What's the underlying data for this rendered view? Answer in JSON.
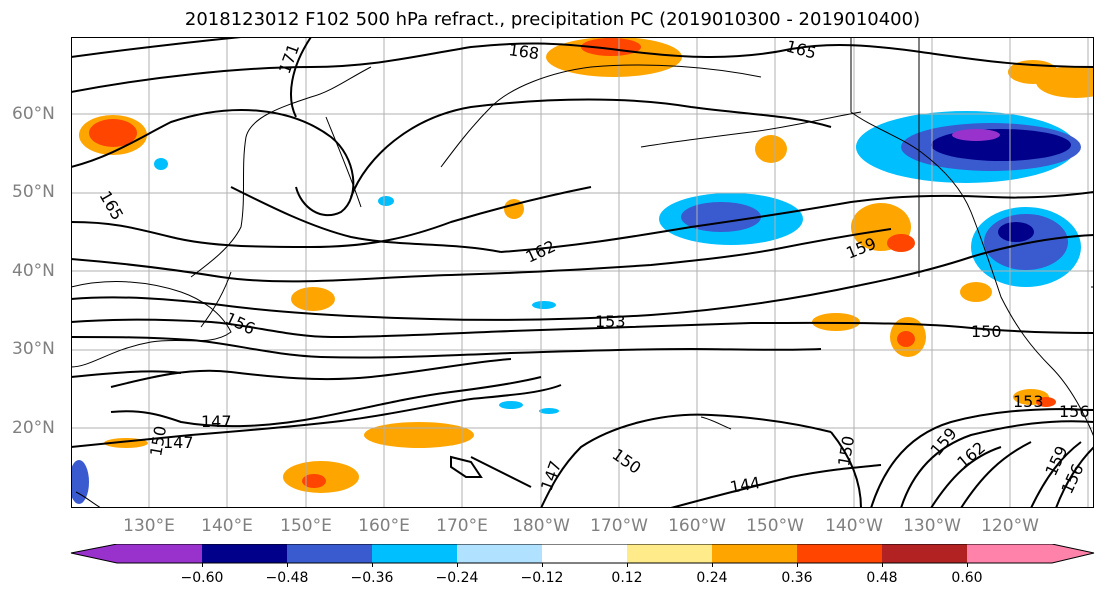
{
  "title": "2018123012 F102 500 hPa refract., precipitation PC (2019010300 - 2019010400)",
  "lat_labels": [
    "60°N",
    "50°N",
    "40°N",
    "30°N",
    "20°N"
  ],
  "lon_labels": [
    "130°E",
    "140°E",
    "150°E",
    "160°E",
    "170°E",
    "180°W",
    "170°W",
    "160°W",
    "150°W",
    "140°W",
    "130°W",
    "120°W"
  ],
  "contour_labels": [
    "171",
    "168",
    "165",
    "165",
    "162",
    "159",
    "156",
    "153",
    "150",
    "150",
    "147",
    "147",
    "147",
    "144",
    "150",
    "150",
    "153",
    "156",
    "159",
    "162",
    "159",
    "156",
    "150"
  ],
  "colorbar": {
    "ticks": [
      "−0.60",
      "−0.48",
      "−0.36",
      "−0.24",
      "−0.12",
      "0.12",
      "0.24",
      "0.36",
      "0.48",
      "0.60"
    ],
    "colors": [
      "#9932CC",
      "#00008B",
      "#3A5ACF",
      "#00BFFF",
      "#B0E2FF",
      "#FFFFFF",
      "#FFEB8A",
      "#FFA500",
      "#FF4500",
      "#B22222",
      "#FF82AB"
    ]
  },
  "colors": {
    "contour": "#000000",
    "grid": "#b0b0b0",
    "tick_label": "#808080"
  }
}
